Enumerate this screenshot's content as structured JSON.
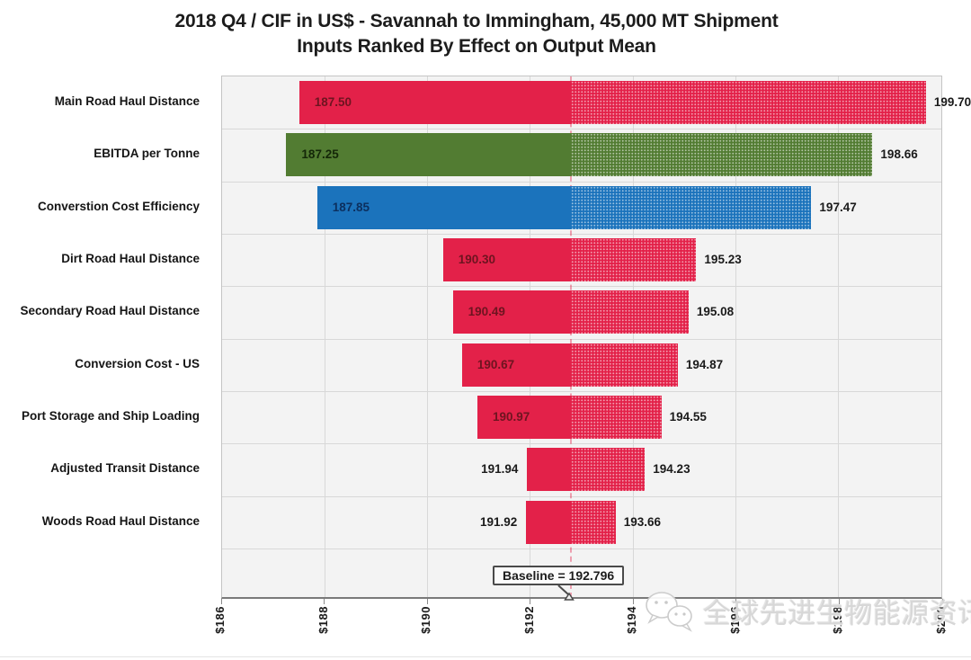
{
  "header": {
    "title": "2018 Q4 / CIF in US$ - Savannah to Immingham, 45,000 MT Shipment",
    "subtitle": "Inputs Ranked By Effect on Output Mean"
  },
  "chart_data": {
    "type": "bar",
    "subtype": "tornado",
    "title": "2018 Q4 / CIF in US$ - Savannah to Immingham, 45,000 MT Shipment",
    "subtitle": "Inputs Ranked By Effect on Output Mean",
    "orientation": "horizontal",
    "grid": true,
    "x_axis": {
      "min": 186,
      "max": 200,
      "tick_step": 2,
      "tick_labels": [
        "$186",
        "$188",
        "$190",
        "$192",
        "$194",
        "$196",
        "$198",
        "$200"
      ]
    },
    "baseline": {
      "value": 192.796,
      "label": "Baseline = 192.796"
    },
    "categories": [
      "Main Road Haul Distance",
      "EBITDA per Tonne",
      "Converstion Cost Efficiency",
      "Dirt Road Haul Distance",
      "Secondary Road Haul Distance",
      "Conversion Cost - US",
      "Port Storage and Ship Loading",
      "Adjusted Transit Distance",
      "Woods Road Haul Distance"
    ],
    "bars": [
      {
        "category": "Main Road Haul Distance",
        "low": 187.5,
        "high": 199.7,
        "low_label": "187.50",
        "high_label": "199.70",
        "color": "#E32149",
        "inside_color": "#6E1420",
        "low_inside": true
      },
      {
        "category": "EBITDA per Tonne",
        "low": 187.25,
        "high": 198.66,
        "low_label": "187.25",
        "high_label": "198.66",
        "color": "#527C32",
        "inside_color": "#142708",
        "low_inside": true
      },
      {
        "category": "Converstion Cost Efficiency",
        "low": 187.85,
        "high": 197.47,
        "low_label": "187.85",
        "high_label": "197.47",
        "color": "#1B73BC",
        "inside_color": "#0C2F5E",
        "low_inside": true
      },
      {
        "category": "Dirt Road Haul Distance",
        "low": 190.3,
        "high": 195.23,
        "low_label": "190.30",
        "high_label": "195.23",
        "color": "#E32149",
        "inside_color": "#6E1420",
        "low_inside": true
      },
      {
        "category": "Secondary Road Haul Distance",
        "low": 190.49,
        "high": 195.08,
        "low_label": "190.49",
        "high_label": "195.08",
        "color": "#E32149",
        "inside_color": "#6E1420",
        "low_inside": true
      },
      {
        "category": "Conversion Cost - US",
        "low": 190.67,
        "high": 194.87,
        "low_label": "190.67",
        "high_label": "194.87",
        "color": "#E32149",
        "inside_color": "#6E1420",
        "low_inside": true
      },
      {
        "category": "Port Storage and Ship Loading",
        "low": 190.97,
        "high": 194.55,
        "low_label": "190.97",
        "high_label": "194.55",
        "color": "#E32149",
        "inside_color": "#6E1420",
        "low_inside": true
      },
      {
        "category": "Adjusted Transit Distance",
        "low": 191.94,
        "high": 194.23,
        "low_label": "191.94",
        "high_label": "194.23",
        "color": "#E32149",
        "inside_color": "#6E1420",
        "low_inside": false
      },
      {
        "category": "Woods Road Haul Distance",
        "low": 191.92,
        "high": 193.66,
        "low_label": "191.92",
        "high_label": "193.66",
        "color": "#E32149",
        "inside_color": "#6E1420",
        "low_inside": false
      }
    ],
    "outside_label_color": "#1a1a1a",
    "legend": "none"
  },
  "watermark": {
    "text": "全球先进生物能源资讯",
    "icon": "wechat-icon"
  }
}
